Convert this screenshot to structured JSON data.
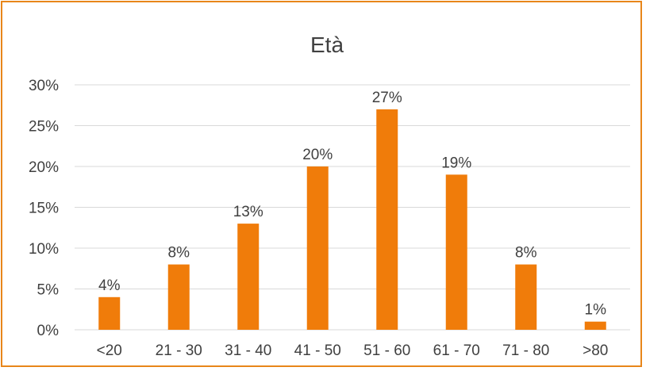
{
  "chart_data": {
    "type": "bar",
    "title": "Età",
    "categories": [
      "<20",
      "21 - 30",
      "31 - 40",
      "41 - 50",
      "51 - 60",
      "61 - 70",
      "71 - 80",
      ">80"
    ],
    "values": [
      4,
      8,
      13,
      20,
      27,
      19,
      8,
      1
    ],
    "value_labels": [
      "4%",
      "8%",
      "13%",
      "20%",
      "27%",
      "19%",
      "8%",
      "1%"
    ],
    "yticks": [
      "0%",
      "5%",
      "10%",
      "15%",
      "20%",
      "25%",
      "30%"
    ],
    "ylim": [
      0,
      30
    ],
    "grid": true,
    "legend": "none",
    "colors": {
      "bar": "#f07c0a",
      "border": "#e8861a",
      "grid": "#d9d9d9",
      "text": "#404040"
    }
  }
}
